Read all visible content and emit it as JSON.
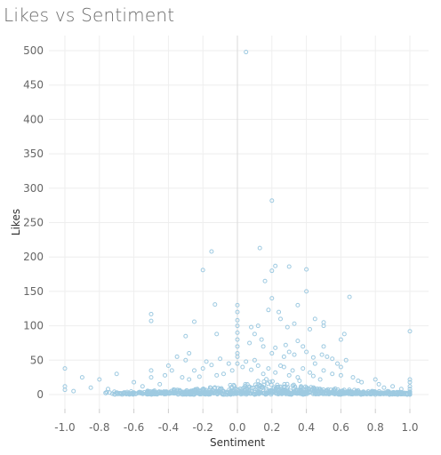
{
  "chart_data": {
    "type": "scatter",
    "title": "Likes vs Sentiment",
    "xlabel": "Sentiment",
    "ylabel": "Likes",
    "xlim": [
      -1.05,
      1.05
    ],
    "ylim": [
      -10,
      520
    ],
    "xticks": [
      "-1.0",
      "-0.8",
      "-0.6",
      "-0.4",
      "-0.2",
      "0.0",
      "0.2",
      "0.4",
      "0.6",
      "0.8",
      "1.0"
    ],
    "yticks": [
      "0",
      "50",
      "100",
      "150",
      "200",
      "250",
      "300",
      "350",
      "400",
      "450",
      "500"
    ],
    "grid": true,
    "zero_line_x": 0,
    "marker": "hollow-circle",
    "point_color": "#9ecae1",
    "points": [
      [
        0.05,
        498
      ],
      [
        0.2,
        282
      ],
      [
        0.13,
        213
      ],
      [
        -0.15,
        208
      ],
      [
        -0.2,
        181
      ],
      [
        0.22,
        187
      ],
      [
        0.2,
        180
      ],
      [
        0.3,
        186
      ],
      [
        0.4,
        182
      ],
      [
        0.16,
        165
      ],
      [
        0.4,
        150
      ],
      [
        0.0,
        130
      ],
      [
        -0.13,
        131
      ],
      [
        0.0,
        120
      ],
      [
        0.0,
        108
      ],
      [
        0.0,
        100
      ],
      [
        0.0,
        90
      ],
      [
        0.0,
        80
      ],
      [
        0.0,
        70
      ],
      [
        0.0,
        60
      ],
      [
        0.0,
        55
      ],
      [
        0.0,
        45
      ],
      [
        0.2,
        140
      ],
      [
        0.18,
        123
      ],
      [
        0.24,
        120
      ],
      [
        0.35,
        130
      ],
      [
        0.25,
        110
      ],
      [
        0.33,
        103
      ],
      [
        0.12,
        100
      ],
      [
        0.08,
        98
      ],
      [
        0.29,
        98
      ],
      [
        0.42,
        95
      ],
      [
        0.45,
        110
      ],
      [
        0.5,
        105
      ],
      [
        0.5,
        100
      ],
      [
        0.62,
        88
      ],
      [
        0.6,
        80
      ],
      [
        0.5,
        70
      ],
      [
        0.65,
        142
      ],
      [
        -0.5,
        117
      ],
      [
        -0.5,
        107
      ],
      [
        -0.25,
        106
      ],
      [
        -0.3,
        85
      ],
      [
        -0.28,
        60
      ],
      [
        -0.12,
        88
      ],
      [
        0.1,
        88
      ],
      [
        0.14,
        80
      ],
      [
        0.15,
        70
      ],
      [
        0.07,
        75
      ],
      [
        0.22,
        68
      ],
      [
        0.28,
        72
      ],
      [
        0.35,
        78
      ],
      [
        0.38,
        70
      ],
      [
        0.3,
        62
      ],
      [
        0.2,
        60
      ],
      [
        0.27,
        55
      ],
      [
        0.33,
        58
      ],
      [
        0.4,
        62
      ],
      [
        0.44,
        54
      ],
      [
        0.49,
        58
      ],
      [
        0.52,
        55
      ],
      [
        0.55,
        52
      ],
      [
        0.58,
        45
      ],
      [
        0.6,
        40
      ],
      [
        0.63,
        50
      ],
      [
        0.45,
        45
      ],
      [
        0.25,
        42
      ],
      [
        0.1,
        50
      ],
      [
        0.05,
        48
      ],
      [
        -0.05,
        45
      ],
      [
        -0.1,
        52
      ],
      [
        -0.15,
        43
      ],
      [
        -0.18,
        48
      ],
      [
        -0.3,
        50
      ],
      [
        -0.35,
        55
      ],
      [
        -0.4,
        42
      ],
      [
        -0.2,
        38
      ],
      [
        -0.25,
        35
      ],
      [
        -0.5,
        35
      ],
      [
        -0.7,
        30
      ],
      [
        -0.8,
        22
      ],
      [
        -0.9,
        25
      ],
      [
        -1.0,
        38
      ],
      [
        -1.0,
        12
      ],
      [
        -1.0,
        7
      ],
      [
        -0.95,
        5
      ],
      [
        -0.85,
        10
      ],
      [
        -0.75,
        8
      ],
      [
        -0.6,
        18
      ],
      [
        -0.55,
        12
      ],
      [
        -0.5,
        25
      ],
      [
        -0.45,
        15
      ],
      [
        -0.42,
        28
      ],
      [
        -0.38,
        35
      ],
      [
        0.7,
        20
      ],
      [
        0.72,
        18
      ],
      [
        0.8,
        22
      ],
      [
        0.82,
        15
      ],
      [
        0.85,
        10
      ],
      [
        0.9,
        12
      ],
      [
        0.95,
        8
      ],
      [
        1.0,
        92
      ],
      [
        1.0,
        22
      ],
      [
        1.0,
        18
      ],
      [
        1.0,
        12
      ],
      [
        1.0,
        8
      ],
      [
        1.0,
        4
      ],
      [
        0.5,
        35
      ],
      [
        0.55,
        30
      ],
      [
        0.6,
        28
      ],
      [
        0.67,
        25
      ],
      [
        0.42,
        32
      ],
      [
        0.38,
        38
      ],
      [
        0.32,
        35
      ],
      [
        0.27,
        40
      ],
      [
        0.18,
        38
      ],
      [
        0.12,
        42
      ],
      [
        0.08,
        36
      ],
      [
        0.03,
        40
      ],
      [
        -0.03,
        35
      ],
      [
        -0.08,
        30
      ],
      [
        -0.12,
        28
      ],
      [
        0.15,
        30
      ],
      [
        0.22,
        32
      ],
      [
        0.3,
        28
      ],
      [
        0.35,
        25
      ],
      [
        0.48,
        22
      ],
      [
        0.44,
        27
      ],
      [
        0.36,
        20
      ],
      [
        -0.32,
        25
      ],
      [
        -0.28,
        22
      ],
      [
        -0.22,
        26
      ]
    ]
  }
}
